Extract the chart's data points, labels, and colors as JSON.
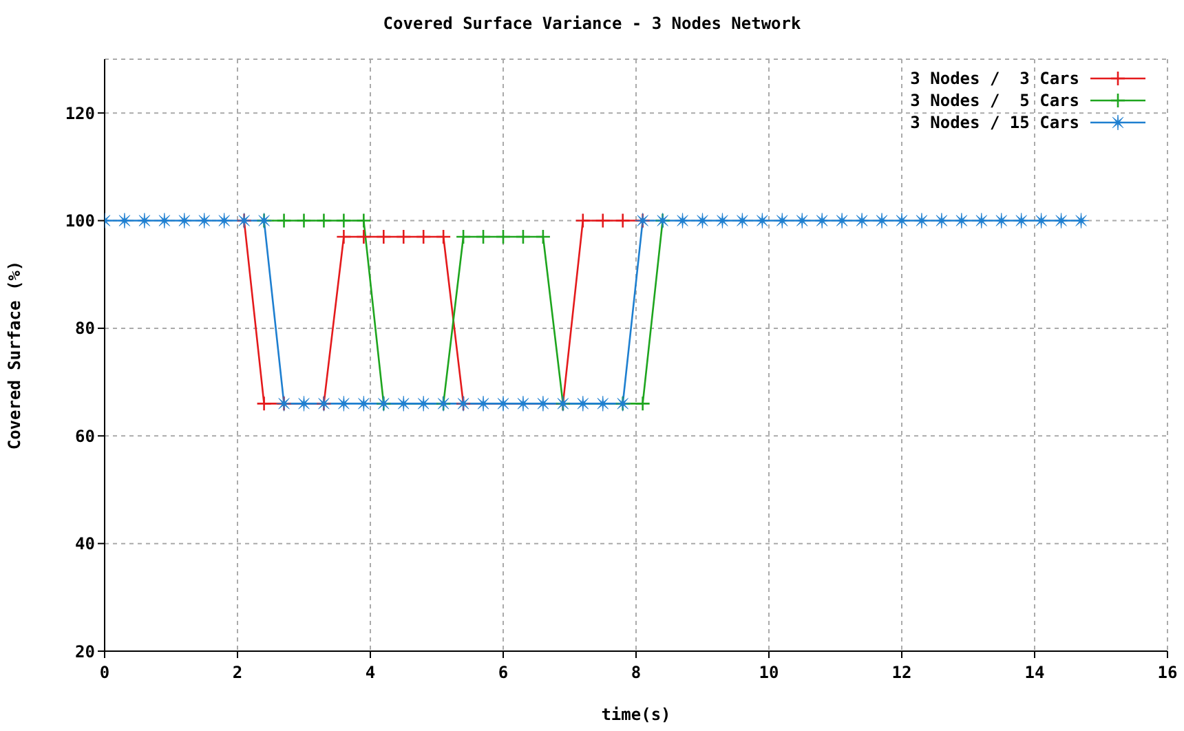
{
  "chart_data": {
    "type": "line",
    "title": "Covered Surface Variance - 3 Nodes Network",
    "xlabel": "time(s)",
    "ylabel": "Covered Surface (%)",
    "x": [
      0,
      0.3,
      0.6,
      0.9,
      1.2,
      1.5,
      1.8,
      2.1,
      2.4,
      2.7,
      3.0,
      3.3,
      3.6,
      3.9,
      4.2,
      4.5,
      4.8,
      5.1,
      5.4,
      5.7,
      6.0,
      6.3,
      6.6,
      6.9,
      7.2,
      7.5,
      7.8,
      8.1,
      8.4,
      8.7,
      9.0,
      9.3,
      9.6,
      9.9,
      10.2,
      10.5,
      10.8,
      11.1,
      11.4,
      11.7,
      12.0,
      12.3,
      12.6,
      12.9,
      13.2,
      13.5,
      13.8,
      14.1,
      14.4,
      14.7
    ],
    "series": [
      {
        "name": "3 Nodes /  3 Cars",
        "color": "#e41a1c",
        "marker": "cross",
        "values": [
          null,
          null,
          null,
          null,
          null,
          null,
          null,
          100,
          66,
          66,
          null,
          66,
          97,
          97,
          97,
          97,
          97,
          97,
          66,
          null,
          null,
          null,
          null,
          66,
          100,
          100,
          100,
          100,
          null,
          null,
          null,
          null,
          null,
          null,
          null,
          null,
          null,
          null,
          null,
          null,
          null,
          null,
          null,
          null,
          null,
          null,
          null,
          null,
          null,
          null
        ]
      },
      {
        "name": "3 Nodes /  5 Cars",
        "color": "#1ea51e",
        "marker": "cross",
        "values": [
          null,
          null,
          null,
          null,
          null,
          null,
          null,
          null,
          100,
          100,
          100,
          100,
          100,
          100,
          66,
          null,
          null,
          66,
          97,
          97,
          97,
          97,
          97,
          66,
          null,
          null,
          66,
          66,
          100,
          null,
          null,
          null,
          null,
          null,
          null,
          null,
          null,
          null,
          null,
          null,
          null,
          null,
          null,
          null,
          null,
          null,
          null,
          null,
          null,
          null
        ]
      },
      {
        "name": "3 Nodes / 15 Cars",
        "color": "#1e7fd0",
        "marker": "star",
        "values": [
          100,
          100,
          100,
          100,
          100,
          100,
          100,
          100,
          100,
          66,
          66,
          66,
          66,
          66,
          66,
          66,
          66,
          66,
          66,
          66,
          66,
          66,
          66,
          66,
          66,
          66,
          66,
          100,
          100,
          100,
          100,
          100,
          100,
          100,
          100,
          100,
          100,
          100,
          100,
          100,
          100,
          100,
          100,
          100,
          100,
          100,
          100,
          100,
          100,
          100
        ]
      }
    ],
    "xlim": [
      0,
      16
    ],
    "xticks": [
      0,
      2,
      4,
      6,
      8,
      10,
      12,
      14,
      16
    ],
    "ylim": [
      20,
      130
    ],
    "yticks": [
      20,
      40,
      60,
      80,
      100,
      120
    ],
    "grid": true,
    "legend": "top right",
    "line_style": "solid"
  }
}
